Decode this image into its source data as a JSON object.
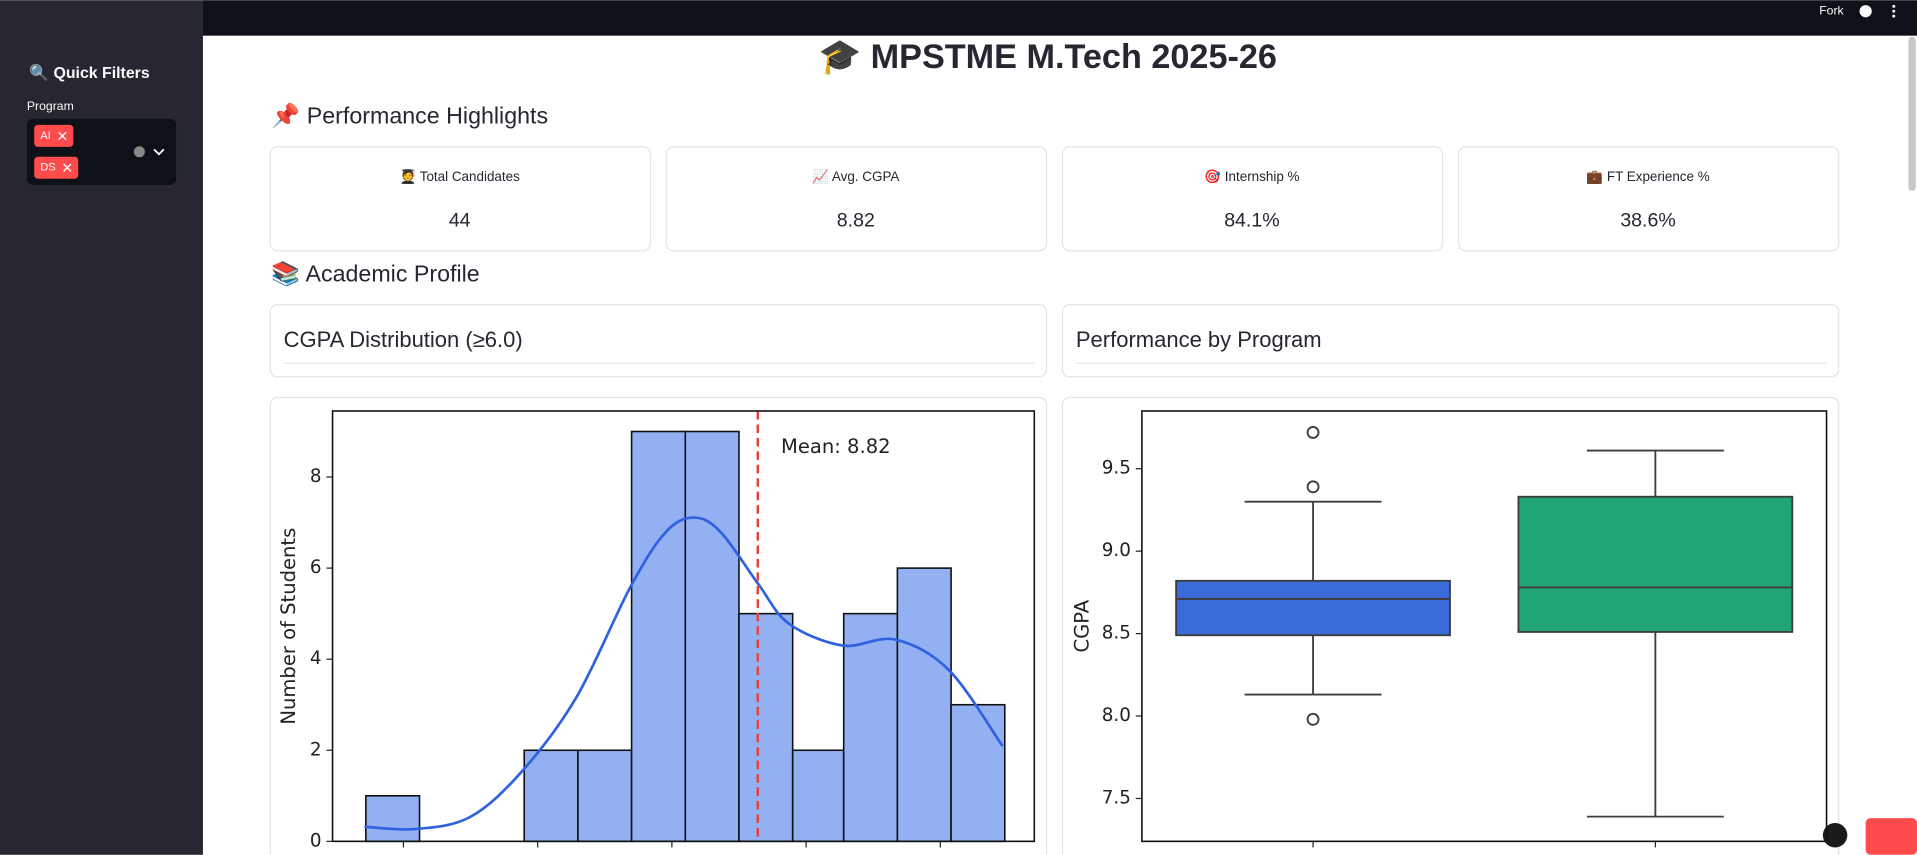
{
  "sidebar": {
    "title": "🔍 Quick Filters",
    "filter_label": "Program",
    "selected": [
      "AI",
      "DS"
    ]
  },
  "topbar": {
    "fork": "Fork"
  },
  "header": {
    "title": "🎓 MPSTME M.Tech 2025-26"
  },
  "sections": [
    "📌 Performance Highlights",
    "📚 Academic Profile"
  ],
  "metrics": [
    {
      "label": "🧑‍🎓 Total Candidates",
      "value": "44"
    },
    {
      "label": "📈 Avg. CGPA",
      "value": "8.82"
    },
    {
      "label": "🎯 Internship %",
      "value": "84.1%"
    },
    {
      "label": "💼 FT Experience %",
      "value": "38.6%"
    }
  ],
  "chart_data": [
    {
      "type": "histogram",
      "title": "CGPA Distribution (≥6.0)",
      "y_label": "Number of Students",
      "bins": [
        7.36,
        7.56,
        7.76,
        7.95,
        8.15,
        8.35,
        8.55,
        8.75,
        8.95,
        9.14,
        9.34,
        9.54,
        9.74
      ],
      "values": [
        1,
        0,
        0,
        2,
        2,
        9,
        9,
        5,
        2,
        5,
        6,
        3
      ],
      "color": "#92b0f2",
      "kde": {
        "color": "#2f62e0",
        "x": [
          7.355,
          7.545,
          7.75,
          7.945,
          8.145,
          8.345,
          8.477,
          8.582,
          8.682,
          8.823,
          8.936,
          9.136,
          9.332,
          9.532,
          9.732
        ],
        "y": [
          0.32,
          0.27,
          0.54,
          1.56,
          3.17,
          5.58,
          6.79,
          7.11,
          6.79,
          5.64,
          4.78,
          4.3,
          4.43,
          3.76,
          2.09
        ]
      },
      "mean": {
        "value": 8.82,
        "label": "Mean: 8.82",
        "color": "#e8403a"
      },
      "xlim": [
        7.236,
        9.85
      ],
      "xticks": [
        7.5,
        8,
        8.5,
        9,
        9.5
      ],
      "ylim": [
        0,
        9.45
      ],
      "yticks": [
        0,
        2,
        4,
        6,
        8
      ]
    },
    {
      "type": "box",
      "title": "Performance by Program",
      "y_label": "CGPA",
      "series": [
        {
          "color": "#3a6bd8",
          "whislo": 8.13,
          "q1": 8.49,
          "med": 8.71,
          "q3": 8.82,
          "whishi": 9.3,
          "fliers": [
            9.72,
            9.39,
            7.98
          ]
        },
        {
          "color": "#22a574",
          "whislo": 7.39,
          "q1": 8.51,
          "med": 8.78,
          "q3": 9.33,
          "whishi": 9.61,
          "fliers": []
        }
      ],
      "ylim": [
        7.24,
        9.85
      ],
      "yticks": [
        7.5,
        {
          "value": 8,
          "label": "8.0"
        },
        8.5,
        {
          "value": 9,
          "label": "9.0"
        },
        9.5
      ]
    }
  ]
}
